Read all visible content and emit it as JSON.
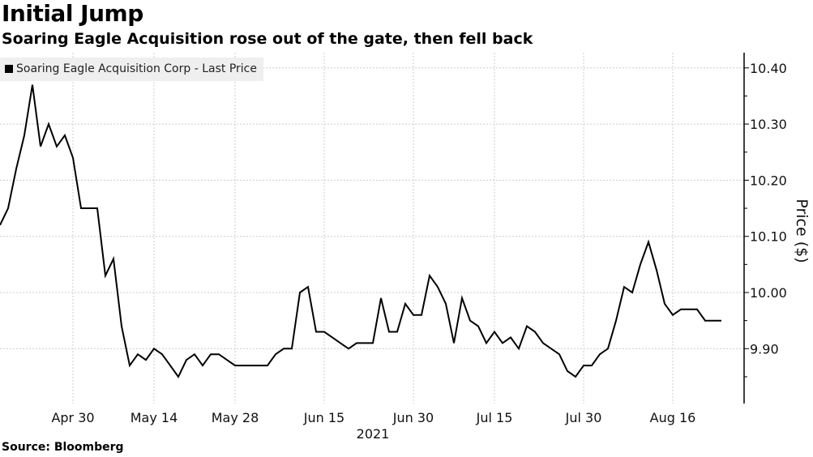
{
  "header": {
    "title": "Initial Jump",
    "subtitle": "Soaring Eagle Acquisition rose out of the gate, then fell back"
  },
  "source": "Source: Bloomberg",
  "chart_data": {
    "type": "line",
    "title": "Initial Jump",
    "subtitle": "Soaring Eagle Acquisition rose out of the gate, then fell back",
    "ylabel": "Price ($)",
    "xlabel": "2021",
    "ylim": [
      9.8,
      10.42
    ],
    "yticks": [
      "10.40",
      "10.30",
      "10.20",
      "10.10",
      "10.00",
      "9.90"
    ],
    "ytick_values": [
      10.4,
      10.3,
      10.2,
      10.1,
      10.0,
      9.9
    ],
    "xticks": [
      {
        "label": "Apr 30",
        "index": 9
      },
      {
        "label": "May 14",
        "index": 19
      },
      {
        "label": "May 28",
        "index": 29
      },
      {
        "label": "Jun 15",
        "index": 40
      },
      {
        "label": "Jun 30",
        "index": 51
      },
      {
        "label": "Jul 15",
        "index": 61
      },
      {
        "label": "Jul 30",
        "index": 72
      },
      {
        "label": "Aug 16",
        "index": 83
      }
    ],
    "grid": true,
    "legend_position": "top-left",
    "series": [
      {
        "name": "Soaring Eagle Acquisition Corp - Last Price",
        "color": "#000000",
        "values": [
          10.12,
          10.15,
          10.22,
          10.28,
          10.37,
          10.26,
          10.3,
          10.26,
          10.28,
          10.24,
          10.15,
          10.15,
          10.15,
          10.03,
          10.06,
          9.94,
          9.87,
          9.89,
          9.88,
          9.9,
          9.89,
          9.87,
          9.85,
          9.88,
          9.89,
          9.87,
          9.89,
          9.89,
          9.88,
          9.87,
          9.87,
          9.87,
          9.87,
          9.87,
          9.89,
          9.9,
          9.9,
          10.0,
          10.01,
          9.93,
          9.93,
          9.92,
          9.91,
          9.9,
          9.91,
          9.91,
          9.91,
          9.99,
          9.93,
          9.93,
          9.98,
          9.96,
          9.96,
          10.03,
          10.01,
          9.98,
          9.91,
          9.99,
          9.95,
          9.94,
          9.91,
          9.93,
          9.91,
          9.92,
          9.9,
          9.94,
          9.93,
          9.91,
          9.9,
          9.89,
          9.86,
          9.85,
          9.87,
          9.87,
          9.89,
          9.9,
          9.95,
          10.01,
          10.0,
          10.05,
          10.09,
          10.04,
          9.98,
          9.96,
          9.97,
          9.97,
          9.97,
          9.95,
          9.95,
          9.95
        ]
      }
    ]
  }
}
